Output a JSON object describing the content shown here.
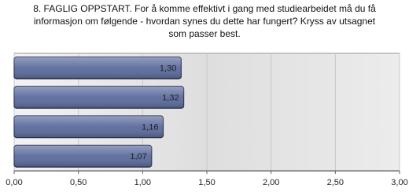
{
  "chart_data": {
    "type": "bar",
    "orientation": "horizontal",
    "title": [
      "8. FAGLIG OPPSTART. For å komme effektivt i gang med studiearbeidet må du få",
      "informasjon om følgende - hvordan synes du dette har fungert? Kryss av utsagnet",
      "som passer best."
    ],
    "values": [
      1.3,
      1.32,
      1.16,
      1.07
    ],
    "value_labels": [
      "1,30",
      "1,32",
      "1,16",
      "1,07"
    ],
    "color": "#5a6a9c",
    "xlim": [
      0,
      3
    ],
    "xticks": [
      {
        "value": 0,
        "label": "0,00"
      },
      {
        "value": 0.5,
        "label": "0,50"
      },
      {
        "value": 1,
        "label": "1,00"
      },
      {
        "value": 1.5,
        "label": "1,50"
      },
      {
        "value": 2,
        "label": "2,00"
      },
      {
        "value": 2.5,
        "label": "2,50"
      },
      {
        "value": 3,
        "label": "3,00"
      }
    ],
    "grid": true
  }
}
